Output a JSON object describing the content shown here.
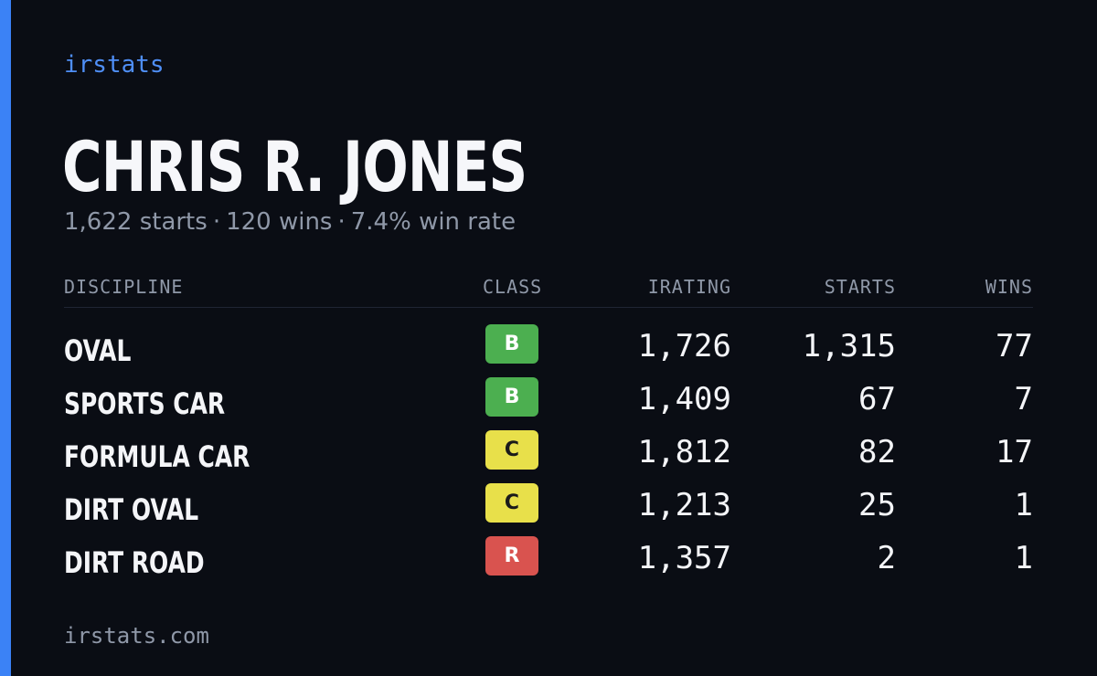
{
  "brand": "irstats",
  "driver": {
    "name": "CHRIS R. JONES",
    "starts": "1,622 starts",
    "wins": "120 wins",
    "win_rate": "7.4% win rate",
    "separator": "·"
  },
  "table": {
    "headers": {
      "discipline": "DISCIPLINE",
      "class": "CLASS",
      "irating": "IRATING",
      "starts": "STARTS",
      "wins": "WINS"
    },
    "rows": [
      {
        "discipline": "OVAL",
        "class": "B",
        "irating": "1,726",
        "starts": "1,315",
        "wins": "77"
      },
      {
        "discipline": "SPORTS CAR",
        "class": "B",
        "irating": "1,409",
        "starts": "67",
        "wins": "7"
      },
      {
        "discipline": "FORMULA CAR",
        "class": "C",
        "irating": "1,812",
        "starts": "82",
        "wins": "17"
      },
      {
        "discipline": "DIRT OVAL",
        "class": "C",
        "irating": "1,213",
        "starts": "25",
        "wins": "1"
      },
      {
        "discipline": "DIRT ROAD",
        "class": "R",
        "irating": "1,357",
        "starts": "2",
        "wins": "1"
      }
    ]
  },
  "class_colors": {
    "B": {
      "bg": "#4caf50",
      "fg": "#ffffff"
    },
    "C": {
      "bg": "#e8e04a",
      "fg": "#1a1a1a"
    },
    "R": {
      "bg": "#d9534f",
      "fg": "#ffffff"
    }
  },
  "accent_color": "#3b82f6",
  "footer": "irstats.com"
}
